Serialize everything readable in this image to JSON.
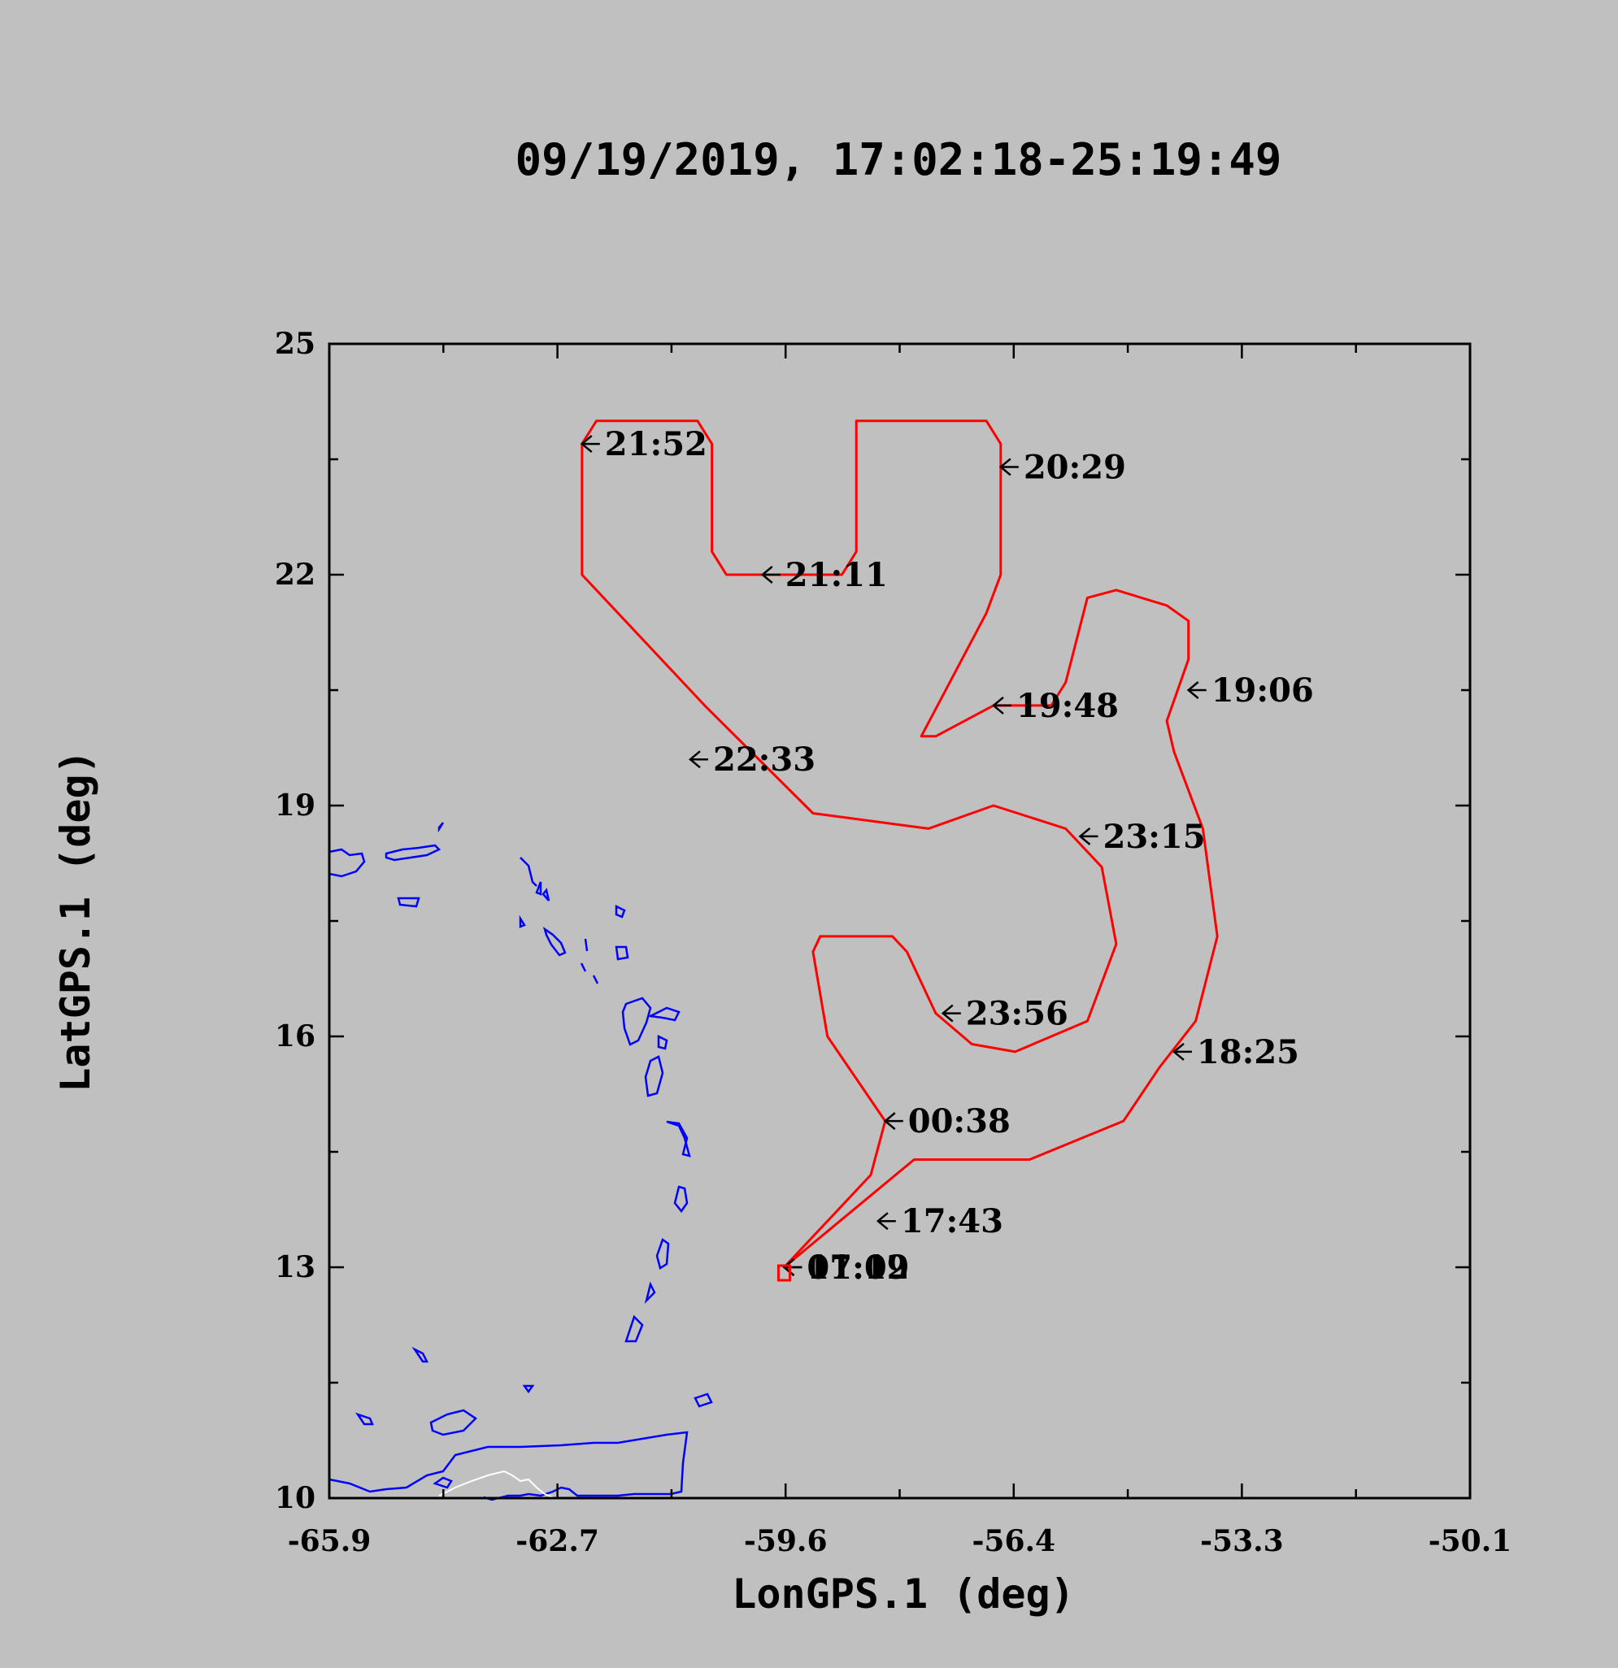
{
  "title": "09/19/2019, 17:02:18-25:19:49",
  "chart_data": {
    "type": "map-track",
    "xlabel": "LonGPS.1 (deg)",
    "ylabel": "LatGPS.1 (deg)",
    "xlim": [
      -65.9,
      -50.1
    ],
    "ylim": [
      10,
      25
    ],
    "x_ticks": [
      "-65.9",
      "-62.7",
      "-59.6",
      "-56.4",
      "-53.3",
      "-50.1"
    ],
    "y_ticks": [
      "10",
      "13",
      "16",
      "19",
      "22",
      "25"
    ],
    "track_color": "#ff0000",
    "coastline_color": "#0000ff",
    "track": [
      [
        -59.6,
        13.0
      ],
      [
        -57.8,
        14.4
      ],
      [
        -56.2,
        14.4
      ],
      [
        -54.9,
        14.9
      ],
      [
        -54.4,
        15.6
      ],
      [
        -53.9,
        16.2
      ],
      [
        -53.6,
        17.3
      ],
      [
        -53.8,
        18.7
      ],
      [
        -54.2,
        19.7
      ],
      [
        -54.3,
        20.1
      ],
      [
        -54.0,
        20.9
      ],
      [
        -54.0,
        21.4
      ],
      [
        -54.3,
        21.6
      ],
      [
        -55.0,
        21.8
      ],
      [
        -55.4,
        21.7
      ],
      [
        -55.7,
        20.6
      ],
      [
        -55.9,
        20.3
      ],
      [
        -56.7,
        20.3
      ],
      [
        -57.5,
        19.9
      ],
      [
        -57.7,
        19.9
      ],
      [
        -56.8,
        21.5
      ],
      [
        -56.6,
        22.0
      ],
      [
        -56.6,
        23.7
      ],
      [
        -56.8,
        24.0
      ],
      [
        -57.5,
        24.0
      ],
      [
        -58.6,
        24.0
      ],
      [
        -58.6,
        22.3
      ],
      [
        -58.8,
        22.0
      ],
      [
        -60.4,
        22.0
      ],
      [
        -60.6,
        22.3
      ],
      [
        -60.6,
        23.7
      ],
      [
        -60.8,
        24.0
      ],
      [
        -62.2,
        24.0
      ],
      [
        -62.4,
        23.7
      ],
      [
        -62.4,
        22.0
      ],
      [
        -60.7,
        20.3
      ],
      [
        -59.2,
        18.9
      ],
      [
        -57.6,
        18.7
      ],
      [
        -56.7,
        19.0
      ],
      [
        -55.7,
        18.7
      ],
      [
        -55.2,
        18.2
      ],
      [
        -55.0,
        17.2
      ],
      [
        -55.4,
        16.2
      ],
      [
        -56.4,
        15.8
      ],
      [
        -57.0,
        15.9
      ],
      [
        -57.5,
        16.3
      ],
      [
        -57.9,
        17.1
      ],
      [
        -58.1,
        17.3
      ],
      [
        -59.1,
        17.3
      ],
      [
        -59.2,
        17.1
      ],
      [
        -59.0,
        16.0
      ],
      [
        -58.2,
        14.9
      ],
      [
        -58.4,
        14.2
      ],
      [
        -59.6,
        13.0
      ]
    ],
    "time_labels": [
      {
        "text": "17:02",
        "lon": -59.6,
        "lat": 13.0
      },
      {
        "text": "17:43",
        "lon": -58.3,
        "lat": 13.6
      },
      {
        "text": "18:25",
        "lon": -54.2,
        "lat": 15.8
      },
      {
        "text": "19:06",
        "lon": -54.0,
        "lat": 20.5
      },
      {
        "text": "19:48",
        "lon": -56.7,
        "lat": 20.3
      },
      {
        "text": "20:29",
        "lon": -56.6,
        "lat": 23.4
      },
      {
        "text": "21:11",
        "lon": -59.9,
        "lat": 22.0
      },
      {
        "text": "21:52",
        "lon": -62.4,
        "lat": 23.7
      },
      {
        "text": "22:33",
        "lon": -60.9,
        "lat": 19.6
      },
      {
        "text": "23:15",
        "lon": -55.5,
        "lat": 18.6
      },
      {
        "text": "23:56",
        "lon": -57.4,
        "lat": 16.3
      },
      {
        "text": "00:38",
        "lon": -58.2,
        "lat": 14.9
      },
      {
        "text": "01:19",
        "lon": -59.6,
        "lat": 13.0
      }
    ]
  }
}
